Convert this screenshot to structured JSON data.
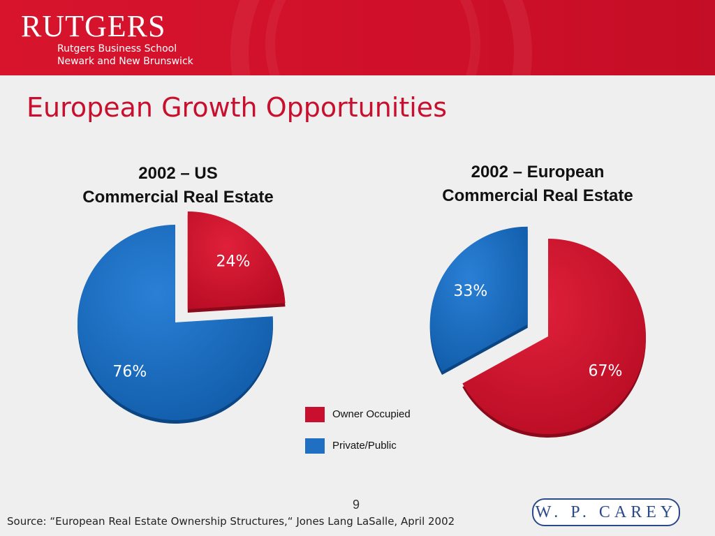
{
  "header": {
    "brand": "RUTGERS",
    "school_line1": "Rutgers Business School",
    "school_line2": "Newark and New Brunswick"
  },
  "slide_title": "European Growth Opportunities",
  "colors": {
    "owner_occupied": "#c8102e",
    "private_public": "#1f6fc2",
    "banner": "#cf102a"
  },
  "chart_data": [
    {
      "type": "pie",
      "title_line1": "2002 – US",
      "title_line2": "Commercial Real Estate",
      "slices": [
        {
          "name": "Owner Occupied",
          "value": 24,
          "label": "24%",
          "exploded": true
        },
        {
          "name": "Private/Public",
          "value": 76,
          "label": "76%",
          "exploded": false
        }
      ]
    },
    {
      "type": "pie",
      "title_line1": "2002 – European",
      "title_line2": "Commercial Real Estate",
      "slices": [
        {
          "name": "Owner Occupied",
          "value": 67,
          "label": "67%",
          "exploded": false
        },
        {
          "name": "Private/Public",
          "value": 33,
          "label": "33%",
          "exploded": true
        }
      ]
    }
  ],
  "legend": [
    {
      "name": "Owner Occupied",
      "color_key": "owner_occupied"
    },
    {
      "name": "Private/Public",
      "color_key": "private_public"
    }
  ],
  "page_number": "9",
  "source": "Source: “European Real Estate Ownership Structures,“ Jones Lang LaSalle, April 2002",
  "logo_text": "W. P. CAREY"
}
